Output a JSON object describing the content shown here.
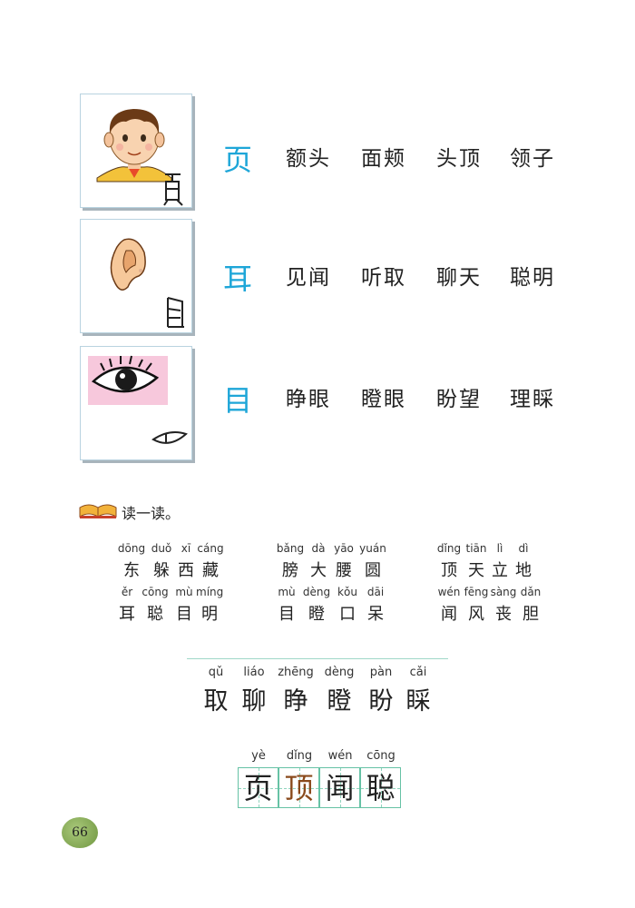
{
  "rows": [
    {
      "char": "页",
      "words": [
        "额头",
        "面颊",
        "头顶",
        "领子"
      ],
      "icon": "boy-face-icon",
      "glyph": "页-ancient-glyph"
    },
    {
      "char": "耳",
      "words": [
        "见闻",
        "听取",
        "聊天",
        "聪明"
      ],
      "icon": "ear-icon",
      "glyph": "耳-ancient-glyph"
    },
    {
      "char": "目",
      "words": [
        "睁眼",
        "瞪眼",
        "盼望",
        "理睬"
      ],
      "icon": "eye-icon",
      "glyph": "目-ancient-glyph"
    }
  ],
  "read_section": {
    "title": "读一读。",
    "groups": [
      {
        "pinyin": [
          "dōng",
          "duǒ",
          "xī",
          "cáng"
        ],
        "chars": [
          "东",
          "躲",
          "西",
          "藏"
        ]
      },
      {
        "pinyin": [
          "bǎng",
          "dà",
          "yāo",
          "yuán"
        ],
        "chars": [
          "膀",
          "大",
          "腰",
          "圆"
        ]
      },
      {
        "pinyin": [
          "dǐng",
          "tiān",
          "lì",
          "dì"
        ],
        "chars": [
          "顶",
          "天",
          "立",
          "地"
        ]
      },
      {
        "pinyin": [
          "ěr",
          "cōng",
          "mù",
          "míng"
        ],
        "chars": [
          "耳",
          "聪",
          "目",
          "明"
        ]
      },
      {
        "pinyin": [
          "mù",
          "dèng",
          "kǒu",
          "dāi"
        ],
        "chars": [
          "目",
          "瞪",
          "口",
          "呆"
        ]
      },
      {
        "pinyin": [
          "wén",
          "fēng",
          "sàng",
          "dǎn"
        ],
        "chars": [
          "闻",
          "风",
          "丧",
          "胆"
        ]
      }
    ]
  },
  "new_chars": [
    {
      "pinyin": "qǔ",
      "char": "取"
    },
    {
      "pinyin": "liáo",
      "char": "聊"
    },
    {
      "pinyin": "zhēng",
      "char": "睁"
    },
    {
      "pinyin": "dèng",
      "char": "瞪"
    },
    {
      "pinyin": "pàn",
      "char": "盼"
    },
    {
      "pinyin": "cǎi",
      "char": "睬"
    }
  ],
  "writing_chars": [
    {
      "pinyin": "yè",
      "char": "页"
    },
    {
      "pinyin": "dǐng",
      "char": "顶"
    },
    {
      "pinyin": "wén",
      "char": "闻"
    },
    {
      "pinyin": "cōng",
      "char": "聪"
    }
  ],
  "page_number": "66",
  "colors": {
    "accent_char": "#1ea6d8",
    "grid": "#66c2a5",
    "highlight_char": "#8a4a1c"
  }
}
